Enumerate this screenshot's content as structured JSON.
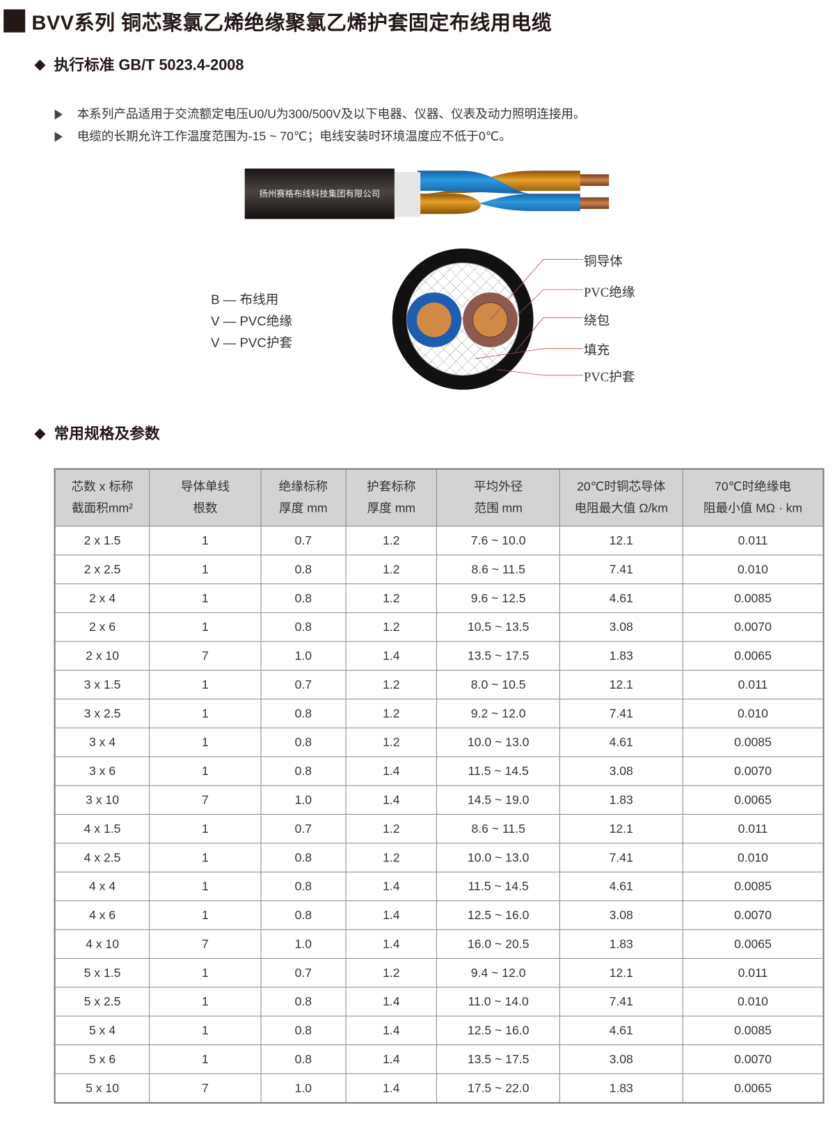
{
  "title": "BVV系列 铜芯聚氯乙烯绝缘聚氯乙烯护套固定布线用电缆",
  "standard": "执行标准 GB/T 5023.4-2008",
  "bullets": [
    "本系列产品适用于交流额定电压U0/U为300/500V及以下电器、仪器、仪表及动力照明连接用。",
    "电缆的长期允许工作温度范围为-15 ~ 70℃；电线安装时环境温度应不低于0℃。"
  ],
  "cable_brand": "扬州赛格布线科技集团有限公司",
  "legend": [
    "B — 布线用",
    "V — PVC绝缘",
    "V — PVC护套"
  ],
  "structure_labels": [
    "铜导体",
    "PVC绝缘",
    "绕包",
    "填充",
    "PVC护套"
  ],
  "colors": {
    "blue_core": "#1e6fb8",
    "brown_core": "#8c5a4f",
    "copper": "#d08a45",
    "sheath": "#111111"
  },
  "specs_heading": "常用规格及参数",
  "table": {
    "headers": [
      [
        "芯数 x 标称",
        "截面积mm²"
      ],
      [
        "导体单线",
        "根数"
      ],
      [
        "绝缘标称",
        "厚度 mm"
      ],
      [
        "护套标称",
        "厚度 mm"
      ],
      [
        "平均外径",
        "范围 mm"
      ],
      [
        "20℃时铜芯导体",
        "电阻最大值 Ω/km"
      ],
      [
        "70℃时绝缘电",
        "阻最小值 MΩ · km"
      ]
    ],
    "rows": [
      [
        "2 x 1.5",
        "1",
        "0.7",
        "1.2",
        "7.6 ~ 10.0",
        "12.1",
        "0.011"
      ],
      [
        "2 x 2.5",
        "1",
        "0.8",
        "1.2",
        "8.6 ~ 11.5",
        "7.41",
        "0.010"
      ],
      [
        "2 x 4",
        "1",
        "0.8",
        "1.2",
        "9.6 ~ 12.5",
        "4.61",
        "0.0085"
      ],
      [
        "2 x 6",
        "1",
        "0.8",
        "1.2",
        "10.5 ~ 13.5",
        "3.08",
        "0.0070"
      ],
      [
        "2 x 10",
        "7",
        "1.0",
        "1.4",
        "13.5 ~ 17.5",
        "1.83",
        "0.0065"
      ],
      [
        "3 x 1.5",
        "1",
        "0.7",
        "1.2",
        "8.0 ~ 10.5",
        "12.1",
        "0.011"
      ],
      [
        "3 x 2.5",
        "1",
        "0.8",
        "1.2",
        "9.2 ~ 12.0",
        "7.41",
        "0.010"
      ],
      [
        "3 x 4",
        "1",
        "0.8",
        "1.2",
        "10.0 ~ 13.0",
        "4.61",
        "0.0085"
      ],
      [
        "3 x 6",
        "1",
        "0.8",
        "1.4",
        "11.5 ~ 14.5",
        "3.08",
        "0.0070"
      ],
      [
        "3 x 10",
        "7",
        "1.0",
        "1.4",
        "14.5 ~ 19.0",
        "1.83",
        "0.0065"
      ],
      [
        "4 x 1.5",
        "1",
        "0.7",
        "1.2",
        "8.6 ~ 11.5",
        "12.1",
        "0.011"
      ],
      [
        "4 x 2.5",
        "1",
        "0.8",
        "1.2",
        "10.0 ~ 13.0",
        "7.41",
        "0.010"
      ],
      [
        "4 x 4",
        "1",
        "0.8",
        "1.4",
        "11.5 ~ 14.5",
        "4.61",
        "0.0085"
      ],
      [
        "4 x 6",
        "1",
        "0.8",
        "1.4",
        "12.5 ~ 16.0",
        "3.08",
        "0.0070"
      ],
      [
        "4 x 10",
        "7",
        "1.0",
        "1.4",
        "16.0 ~ 20.5",
        "1.83",
        "0.0065"
      ],
      [
        "5 x 1.5",
        "1",
        "0.7",
        "1.2",
        "9.4 ~ 12.0",
        "12.1",
        "0.011"
      ],
      [
        "5 x 2.5",
        "1",
        "0.8",
        "1.4",
        "11.0 ~ 14.0",
        "7.41",
        "0.010"
      ],
      [
        "5 x 4",
        "1",
        "0.8",
        "1.4",
        "12.5 ~ 16.0",
        "4.61",
        "0.0085"
      ],
      [
        "5 x 6",
        "1",
        "0.8",
        "1.4",
        "13.5 ~ 17.5",
        "3.08",
        "0.0070"
      ],
      [
        "5 x 10",
        "7",
        "1.0",
        "1.4",
        "17.5 ~ 22.0",
        "1.83",
        "0.0065"
      ]
    ]
  }
}
